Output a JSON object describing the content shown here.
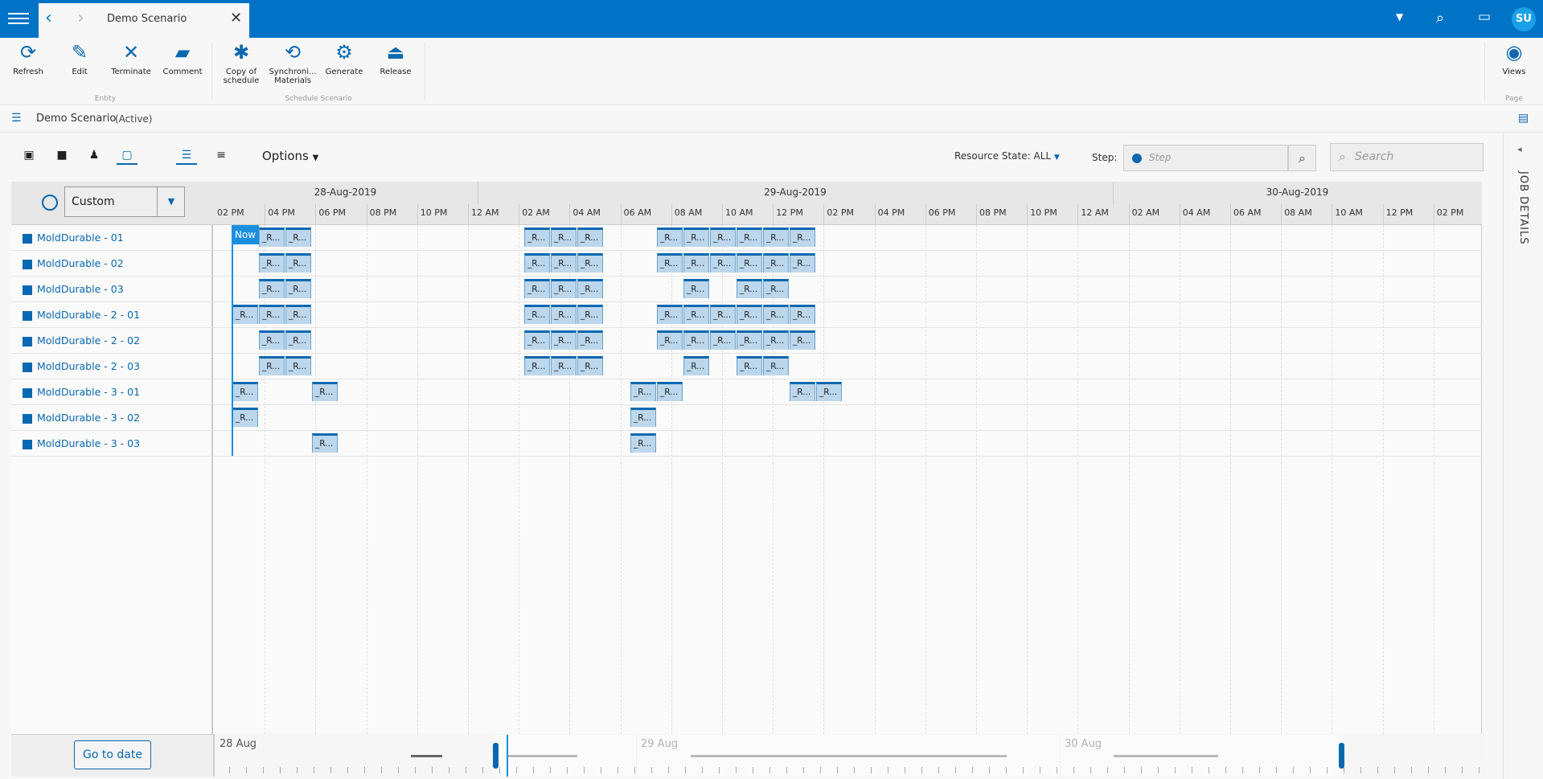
{
  "app": {
    "tab_title": "Demo Scenario",
    "user_initials": "SU"
  },
  "ribbon": {
    "entity_group": "Entity",
    "schedule_group": "Schedule Scenario",
    "page_group": "Page",
    "buttons": {
      "refresh": "Refresh",
      "edit": "Edit",
      "terminate": "Terminate",
      "comment": "Comment",
      "copy_line1": "Copy of",
      "copy_line2": "schedule",
      "sync_line1": "Synchroni...",
      "sync_line2": "Materials",
      "generate": "Generate",
      "release": "Release",
      "views": "Views"
    }
  },
  "breadcrumb": {
    "title": "Demo Scenario",
    "status": "(Active)"
  },
  "toolbar": {
    "options_label": "Options",
    "resource_state_label": "Resource State:",
    "resource_state_value": "ALL",
    "step_label": "Step:",
    "step_placeholder": "Step",
    "search_placeholder": "Search"
  },
  "side_panel": {
    "title": "JOB DETAILS"
  },
  "gantt": {
    "range_mode": "Custom",
    "dates": [
      "28-Aug-2019",
      "29-Aug-2019",
      "30-Aug-2019"
    ],
    "hours": [
      "02 PM",
      "04 PM",
      "06 PM",
      "08 PM",
      "10 PM",
      "12 AM",
      "02 AM",
      "04 AM",
      "06 AM",
      "08 AM",
      "10 AM",
      "12 PM",
      "02 PM",
      "04 PM",
      "06 PM",
      "08 PM",
      "10 PM",
      "12 AM",
      "02 AM",
      "04 AM",
      "06 AM",
      "08 AM",
      "10 AM",
      "12 PM",
      "02 PM"
    ],
    "now_label": "Now",
    "job_label": "_R...",
    "resources": [
      "MoldDurable - 01",
      "MoldDurable - 02",
      "MoldDurable - 03",
      "MoldDurable - 2 - 01",
      "MoldDurable - 2 - 02",
      "MoldDurable - 2 - 03",
      "MoldDurable - 3 - 01",
      "MoldDurable - 3 - 02",
      "MoldDurable - 3 - 03"
    ],
    "jobs_by_row": [
      [
        1,
        2,
        11,
        12,
        13,
        16,
        17,
        18,
        19,
        20,
        21
      ],
      [
        1,
        2,
        11,
        12,
        13,
        16,
        17,
        18,
        19,
        20,
        21
      ],
      [
        1,
        2,
        11,
        12,
        13,
        17,
        19,
        20
      ],
      [
        0,
        1,
        2,
        11,
        12,
        13,
        16,
        17,
        18,
        19,
        20,
        21
      ],
      [
        1,
        2,
        11,
        12,
        13,
        16,
        17,
        18,
        19,
        20,
        21
      ],
      [
        1,
        2,
        11,
        12,
        13,
        17,
        19,
        20
      ],
      [
        0,
        3,
        15,
        16,
        21,
        22
      ],
      [
        0,
        15
      ],
      [
        3,
        15
      ]
    ]
  },
  "footer": {
    "go_to_date": "Go to date",
    "timeline_dates": [
      "28 Aug",
      "29 Aug",
      "30 Aug"
    ]
  }
}
